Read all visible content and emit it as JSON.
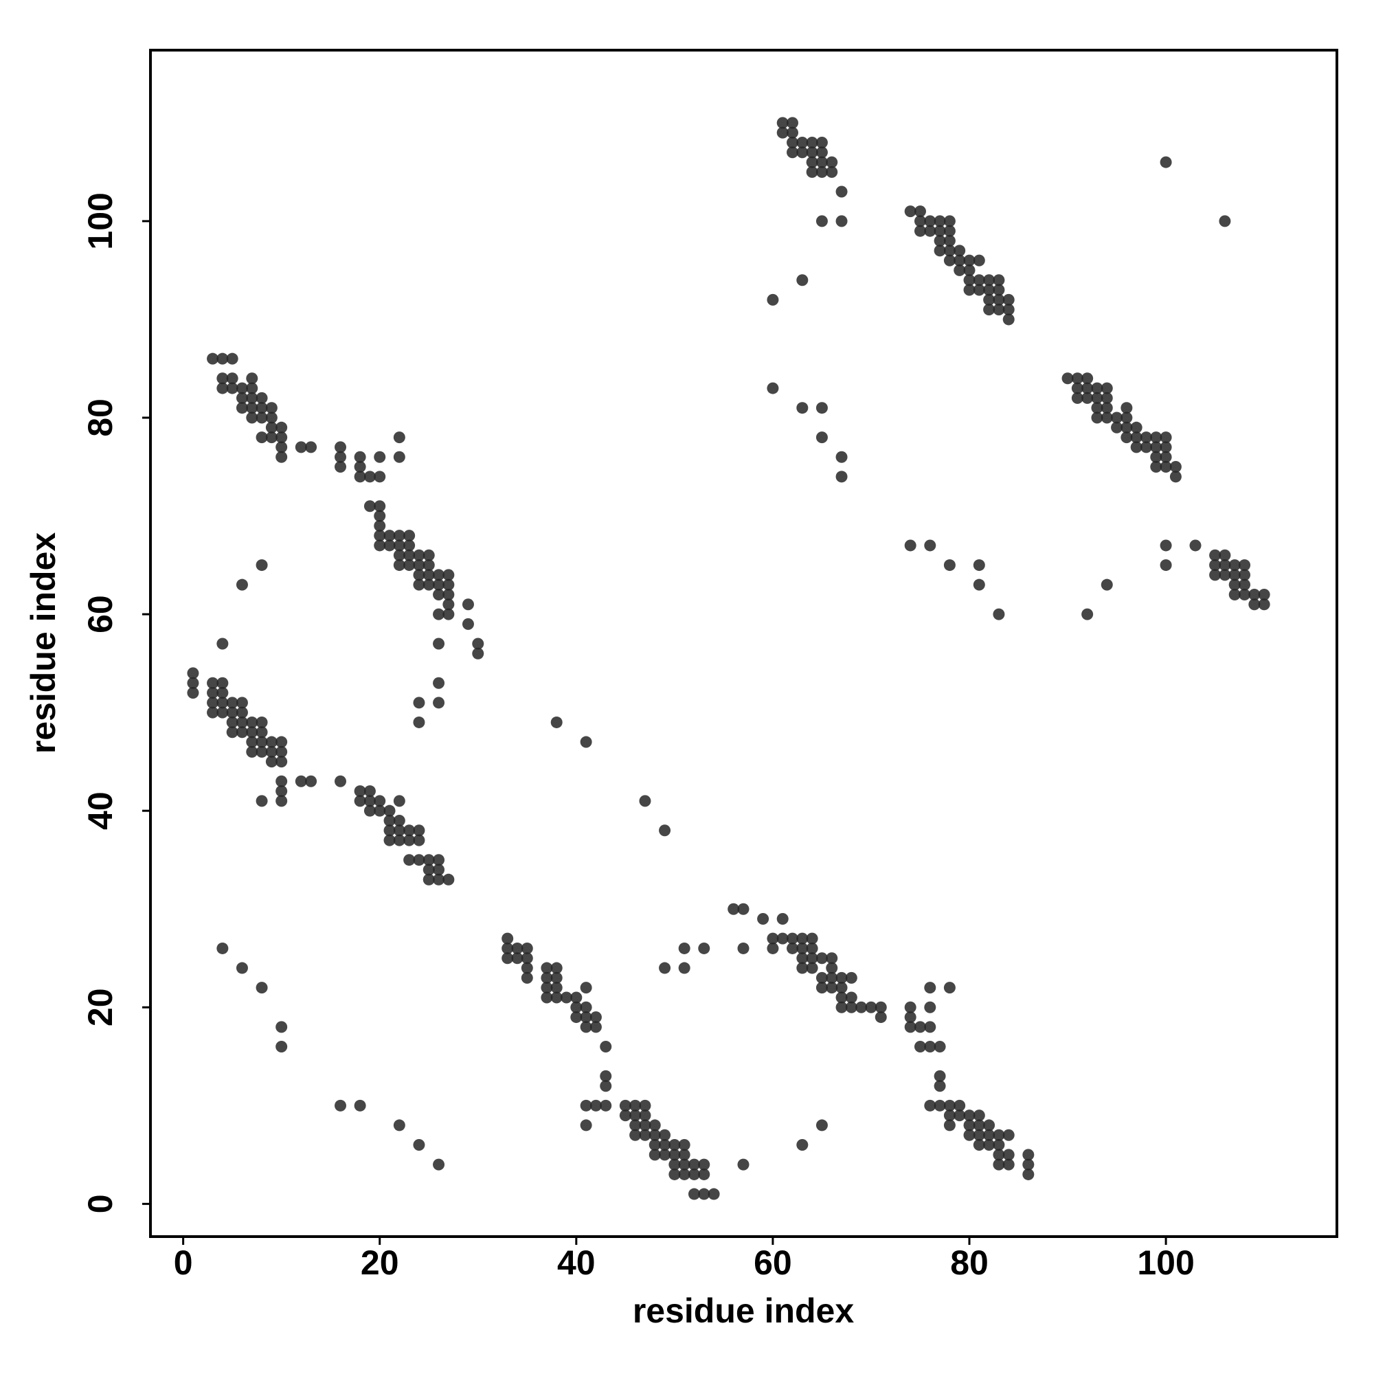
{
  "chart_data": {
    "type": "scatter",
    "xlabel": "residue index",
    "ylabel": "residue index",
    "xlim": [
      -3.33,
      117.4
    ],
    "ylim": [
      -3.33,
      117.4
    ],
    "xticks": [
      0,
      20,
      40,
      60,
      80,
      100
    ],
    "yticks": [
      0,
      20,
      40,
      60,
      80,
      100
    ],
    "color": "#262626",
    "x": [
      3,
      4,
      5,
      4,
      5,
      4,
      5,
      6,
      6,
      7,
      7,
      6,
      7,
      7,
      8,
      7,
      8,
      8,
      9,
      9,
      8,
      9,
      9,
      10,
      10,
      10,
      10,
      12,
      13,
      16,
      16,
      16,
      18,
      18,
      18,
      19,
      20,
      20,
      22,
      22,
      19,
      20,
      20,
      20,
      20,
      20,
      21,
      21,
      22,
      22,
      22,
      23,
      23,
      23,
      23,
      22,
      24,
      24,
      24,
      25,
      25,
      25,
      24,
      25,
      26,
      26,
      26,
      27,
      27,
      27,
      27,
      26,
      27,
      29,
      29,
      30,
      30,
      26,
      26,
      26,
      24,
      24,
      8,
      6,
      4,
      1,
      1,
      1,
      3,
      4,
      3,
      3,
      4,
      3,
      4,
      4,
      5,
      5,
      5,
      5,
      6,
      6,
      6,
      6,
      7,
      7,
      7,
      7,
      8,
      8,
      8,
      8,
      9,
      9,
      9,
      10,
      10,
      10,
      10,
      10,
      10,
      8,
      12,
      13,
      16,
      18,
      18,
      19,
      19,
      19,
      20,
      20,
      21,
      22,
      21,
      22,
      21,
      21,
      22,
      22,
      23,
      23,
      24,
      24,
      23,
      24,
      25,
      25,
      25,
      26,
      26,
      26,
      27,
      38,
      41,
      47,
      49,
      4,
      6,
      8,
      10,
      10,
      16,
      18,
      22,
      24,
      26,
      33,
      33,
      33,
      34,
      34,
      35,
      35,
      35,
      35,
      37,
      38,
      37,
      38,
      37,
      37,
      38,
      38,
      39,
      40,
      40,
      40,
      41,
      41,
      41,
      41,
      42,
      42,
      43,
      43,
      43,
      41,
      42,
      43,
      41,
      45,
      45,
      46,
      46,
      46,
      46,
      47,
      47,
      47,
      47,
      48,
      48,
      48,
      48,
      49,
      49,
      49,
      50,
      50,
      50,
      50,
      51,
      51,
      51,
      51,
      52,
      52,
      53,
      53,
      52,
      53,
      54,
      57,
      49,
      51,
      51,
      53,
      57,
      56,
      57,
      59,
      61,
      60,
      60,
      61,
      62,
      62,
      63,
      63,
      64,
      63,
      63,
      64,
      64,
      64,
      65,
      65,
      65,
      66,
      66,
      66,
      66,
      67,
      67,
      67,
      67,
      68,
      68,
      68,
      69,
      70,
      71,
      71,
      63,
      65,
      74,
      74,
      74,
      75,
      76,
      76,
      76,
      75,
      76,
      77,
      78,
      77,
      77,
      76,
      77,
      78,
      78,
      78,
      79,
      79,
      80,
      80,
      80,
      81,
      81,
      81,
      81,
      82,
      82,
      82,
      83,
      83,
      83,
      83,
      84,
      84,
      84,
      86,
      86,
      86,
      61,
      62,
      61,
      62,
      62,
      63,
      62,
      63,
      64,
      64,
      65,
      64,
      64,
      65,
      65,
      65,
      66,
      66,
      67,
      65,
      67,
      63,
      60,
      60,
      63,
      65,
      65,
      67,
      67,
      74,
      75,
      75,
      75,
      76,
      76,
      77,
      77,
      77,
      77,
      78,
      78,
      78,
      78,
      78,
      79,
      79,
      79,
      80,
      80,
      80,
      80,
      81,
      81,
      81,
      82,
      82,
      82,
      82,
      83,
      83,
      83,
      83,
      84,
      84,
      84,
      100,
      106,
      90,
      91,
      91,
      91,
      92,
      92,
      92,
      93,
      93,
      93,
      93,
      94,
      94,
      94,
      94,
      95,
      95,
      96,
      96,
      96,
      96,
      97,
      97,
      97,
      98,
      98,
      99,
      99,
      99,
      99,
      100,
      100,
      100,
      100,
      101,
      101,
      74,
      76,
      78,
      81,
      81,
      83,
      92,
      94,
      100,
      100,
      103,
      105,
      105,
      105,
      106,
      106,
      106,
      107,
      107,
      107,
      107,
      108,
      108,
      108,
      108,
      109,
      109,
      110,
      110
    ],
    "values": [
      86,
      86,
      86,
      84,
      84,
      83,
      83,
      83,
      82,
      84,
      83,
      81,
      82,
      81,
      82,
      80,
      81,
      80,
      81,
      80,
      78,
      78,
      79,
      79,
      78,
      77,
      76,
      77,
      77,
      77,
      76,
      75,
      76,
      75,
      74,
      74,
      74,
      76,
      78,
      76,
      71,
      71,
      70,
      69,
      68,
      67,
      68,
      67,
      68,
      67,
      66,
      68,
      67,
      66,
      65,
      65,
      66,
      65,
      64,
      66,
      65,
      64,
      63,
      63,
      64,
      63,
      62,
      64,
      63,
      62,
      61,
      60,
      60,
      61,
      59,
      57,
      56,
      57,
      53,
      51,
      51,
      49,
      65,
      63,
      57,
      54,
      53,
      52,
      53,
      53,
      52,
      51,
      52,
      50,
      51,
      50,
      51,
      50,
      49,
      48,
      51,
      50,
      49,
      48,
      49,
      48,
      47,
      46,
      49,
      48,
      47,
      46,
      47,
      46,
      45,
      47,
      46,
      45,
      43,
      42,
      41,
      41,
      43,
      43,
      43,
      42,
      41,
      42,
      41,
      40,
      41,
      40,
      40,
      41,
      39,
      39,
      38,
      37,
      38,
      37,
      38,
      37,
      38,
      37,
      35,
      35,
      35,
      34,
      33,
      35,
      34,
      33,
      33,
      49,
      47,
      41,
      38,
      26,
      24,
      22,
      18,
      16,
      10,
      10,
      8,
      6,
      4,
      27,
      26,
      25,
      26,
      25,
      26,
      25,
      24,
      23,
      24,
      24,
      23,
      23,
      22,
      21,
      22,
      21,
      21,
      21,
      20,
      19,
      22,
      20,
      19,
      18,
      19,
      18,
      16,
      13,
      12,
      10,
      10,
      10,
      8,
      10,
      9,
      10,
      9,
      8,
      7,
      10,
      9,
      8,
      7,
      8,
      7,
      6,
      5,
      7,
      6,
      5,
      6,
      5,
      4,
      3,
      6,
      5,
      4,
      3,
      4,
      3,
      4,
      3,
      1,
      1,
      1,
      4,
      24,
      24,
      26,
      26,
      26,
      30,
      30,
      29,
      29,
      27,
      26,
      27,
      27,
      26,
      27,
      26,
      27,
      25,
      24,
      26,
      25,
      24,
      25,
      23,
      22,
      25,
      24,
      23,
      22,
      23,
      22,
      21,
      20,
      23,
      21,
      20,
      20,
      20,
      20,
      19,
      6,
      8,
      20,
      19,
      18,
      18,
      22,
      20,
      18,
      16,
      16,
      16,
      22,
      13,
      12,
      10,
      10,
      10,
      9,
      8,
      10,
      9,
      9,
      8,
      7,
      9,
      8,
      7,
      6,
      8,
      7,
      6,
      7,
      6,
      5,
      4,
      7,
      5,
      4,
      5,
      4,
      3,
      110,
      110,
      109,
      109,
      108,
      108,
      107,
      107,
      108,
      107,
      108,
      106,
      105,
      107,
      106,
      105,
      106,
      105,
      103,
      100,
      100,
      94,
      92,
      83,
      81,
      81,
      78,
      76,
      74,
      101,
      101,
      100,
      99,
      100,
      99,
      100,
      99,
      98,
      97,
      100,
      99,
      98,
      97,
      96,
      97,
      96,
      95,
      96,
      95,
      94,
      93,
      96,
      94,
      93,
      94,
      93,
      92,
      91,
      94,
      93,
      92,
      91,
      92,
      91,
      90,
      106,
      100,
      84,
      84,
      83,
      82,
      84,
      83,
      82,
      83,
      82,
      81,
      80,
      83,
      82,
      81,
      80,
      80,
      79,
      81,
      80,
      79,
      78,
      79,
      78,
      77,
      78,
      77,
      78,
      77,
      76,
      75,
      78,
      77,
      76,
      75,
      75,
      74,
      67,
      67,
      65,
      65,
      63,
      60,
      60,
      63,
      67,
      65,
      67,
      66,
      65,
      64,
      66,
      65,
      64,
      65,
      64,
      63,
      62,
      65,
      64,
      63,
      62,
      62,
      61,
      62,
      61
    ]
  }
}
